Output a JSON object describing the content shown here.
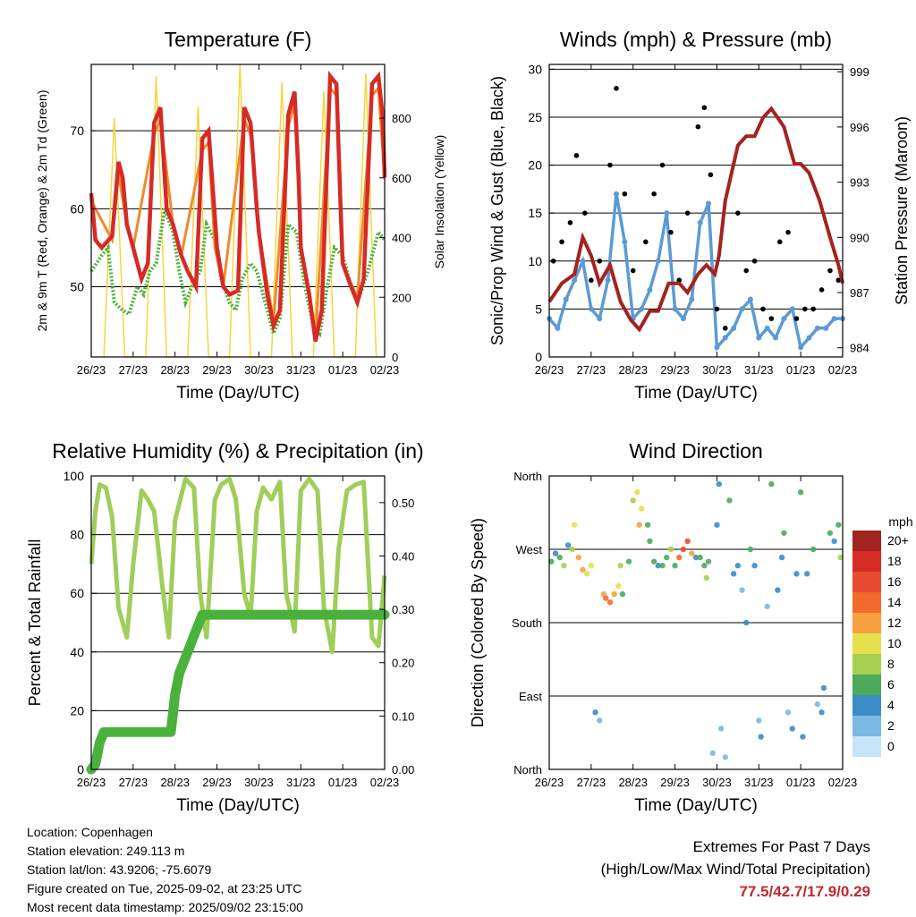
{
  "chart_data": [
    {
      "type": "line",
      "title": "Temperature (F)",
      "xlabel": "Time (Day/UTC)",
      "ylabel": "2m & 9m T (Red, Orange) & 2m Td (Green)",
      "y2label": "Solar Insolation (Yellow)",
      "x_ticks": [
        "26/23",
        "27/23",
        "28/23",
        "29/23",
        "30/23",
        "31/23",
        "01/23",
        "02/23"
      ],
      "ylim": [
        41,
        78.5
      ],
      "y_ticks": [
        50,
        60,
        70
      ],
      "y2lim": [
        0,
        980
      ],
      "y2_ticks": [
        0,
        200,
        400,
        600,
        800
      ],
      "grid": true,
      "series": [
        {
          "name": "2m T",
          "color": "#d62b25",
          "x": [
            0,
            0.1,
            0.25,
            0.5,
            0.65,
            0.75,
            0.85,
            1.0,
            1.2,
            1.35,
            1.5,
            1.65,
            1.8,
            1.95,
            2.0,
            2.15,
            2.3,
            2.5,
            2.65,
            2.8,
            2.95,
            3.0,
            3.15,
            3.3,
            3.5,
            3.65,
            3.8,
            3.95,
            4.0,
            4.2,
            4.35,
            4.5,
            4.7,
            4.85,
            4.95,
            5.0,
            5.2,
            5.35,
            5.5,
            5.7,
            5.85,
            5.95,
            6.0,
            6.2,
            6.35,
            6.5,
            6.7,
            6.85,
            6.95,
            7.0
          ],
          "y": [
            62,
            56,
            55,
            56.5,
            66,
            64,
            58,
            55,
            51,
            53,
            71,
            73,
            60,
            58,
            57,
            54,
            52,
            50,
            69,
            70,
            59,
            55,
            50,
            49,
            49.5,
            73,
            71,
            60,
            57,
            49,
            45,
            47,
            72,
            75,
            64,
            55,
            49,
            43,
            47,
            77,
            76,
            60,
            53,
            50,
            48,
            51,
            76,
            77,
            72,
            64
          ]
        },
        {
          "name": "9m T",
          "color": "#f08a2b",
          "x": [
            0,
            0.5,
            0.65,
            0.85,
            1.0,
            1.5,
            1.65,
            1.95,
            2.15,
            2.65,
            2.8,
            2.95,
            3.15,
            3.65,
            3.8,
            4.0,
            4.35,
            4.7,
            4.85,
            5.0,
            5.35,
            5.7,
            5.85,
            6.0,
            6.35,
            6.7,
            6.85,
            7.0
          ],
          "y": [
            61,
            56,
            64.5,
            58,
            55,
            69.5,
            71.5,
            58,
            54,
            67.5,
            68.5,
            55,
            50,
            71.5,
            69.5,
            57,
            45.5,
            70.5,
            73.5,
            55,
            43.5,
            75.5,
            74.5,
            53,
            48.5,
            74.5,
            75.5,
            64
          ]
        },
        {
          "name": "2m Td",
          "color": "#4ab23c",
          "x": [
            0,
            0.25,
            0.4,
            0.55,
            0.75,
            0.9,
            1.1,
            1.25,
            1.4,
            1.55,
            1.75,
            1.95,
            2.1,
            2.25,
            2.4,
            2.6,
            2.75,
            2.95,
            3.1,
            3.3,
            3.45,
            3.6,
            3.8,
            3.95,
            4.15,
            4.35,
            4.5,
            4.7,
            4.9,
            5.1,
            5.3,
            5.45,
            5.6,
            5.8,
            6.0,
            6.2,
            6.35,
            6.6,
            6.85,
            7.0
          ],
          "y": [
            52,
            54,
            55,
            48,
            47,
            46.5,
            50,
            49,
            52,
            53,
            60,
            57,
            52,
            48,
            50,
            52,
            58,
            56,
            51,
            48,
            47,
            51,
            53,
            52,
            48,
            44,
            46,
            58,
            57,
            50,
            45,
            44,
            49,
            55,
            54,
            50,
            48,
            52,
            57,
            56
          ]
        },
        {
          "name": "Solar Insolation",
          "color": "#f5d63d",
          "axis": "y2",
          "x": [
            0.3,
            0.55,
            0.8,
            1.3,
            1.55,
            1.8,
            2.3,
            2.55,
            2.8,
            3.3,
            3.55,
            3.8,
            4.3,
            4.55,
            4.8,
            5.3,
            5.55,
            5.8,
            6.3,
            6.55,
            6.8
          ],
          "y": [
            0,
            800,
            0,
            0,
            940,
            0,
            0,
            840,
            0,
            0,
            980,
            0,
            0,
            920,
            0,
            0,
            890,
            0,
            0,
            950,
            0
          ]
        }
      ]
    },
    {
      "type": "scatter",
      "title": "Winds (mph) & Pressure (mb)",
      "xlabel": "Time (Day/UTC)",
      "ylabel": "Sonic/Prop Wind & Gust (Blue, Black)",
      "y2label": "Station Pressure (Maroon)",
      "x_ticks": [
        "26/23",
        "27/23",
        "28/23",
        "29/23",
        "30/23",
        "31/23",
        "01/23",
        "02/23"
      ],
      "ylim": [
        0,
        30.5
      ],
      "y_ticks": [
        0,
        5,
        10,
        15,
        20,
        25,
        30
      ],
      "y2lim": [
        983.5,
        999.4
      ],
      "y2_ticks": [
        984,
        987,
        990,
        993,
        996,
        999
      ],
      "grid": true,
      "series": [
        {
          "name": "Gust",
          "color": "#000000",
          "x": [
            0.1,
            0.3,
            0.5,
            0.65,
            0.85,
            1.0,
            1.2,
            1.45,
            1.6,
            1.8,
            2.0,
            2.3,
            2.5,
            2.7,
            2.9,
            3.1,
            3.3,
            3.55,
            3.7,
            3.85,
            4.0,
            4.2,
            4.5,
            4.7,
            4.9,
            5.1,
            5.3,
            5.5,
            5.7,
            5.9,
            6.1,
            6.3,
            6.5,
            6.7,
            6.9
          ],
          "y": [
            10,
            12,
            14,
            21,
            15,
            8,
            10,
            20,
            28,
            17,
            9,
            12,
            17,
            20,
            13,
            8,
            15,
            24,
            26,
            19,
            5,
            3,
            15,
            9,
            10,
            5,
            4,
            12,
            13,
            4,
            5,
            5,
            7,
            9,
            8
          ]
        },
        {
          "name": "Wind",
          "color": "#5b9bd5",
          "x": [
            0,
            0.2,
            0.4,
            0.6,
            0.8,
            1.0,
            1.2,
            1.4,
            1.6,
            1.8,
            2.0,
            2.2,
            2.4,
            2.6,
            2.8,
            3.0,
            3.2,
            3.4,
            3.6,
            3.8,
            4.0,
            4.2,
            4.4,
            4.6,
            4.8,
            5.0,
            5.2,
            5.4,
            5.6,
            5.8,
            6.0,
            6.2,
            6.4,
            6.6,
            6.8,
            7.0
          ],
          "y": [
            4,
            3,
            6,
            8,
            10,
            5,
            4,
            8,
            17,
            12,
            4,
            5,
            7,
            10,
            15,
            5,
            4,
            6,
            14,
            16,
            1,
            2,
            3,
            5,
            6,
            2,
            3,
            2,
            4,
            5,
            1,
            2,
            3,
            3,
            4,
            4
          ]
        },
        {
          "name": "Pressure",
          "color": "#a3231f",
          "axis": "y2",
          "mode": "line",
          "x": [
            0,
            0.3,
            0.6,
            0.8,
            1.0,
            1.2,
            1.45,
            1.7,
            1.95,
            2.15,
            2.4,
            2.6,
            2.85,
            3.1,
            3.3,
            3.55,
            3.75,
            3.95,
            4.05,
            4.2,
            4.5,
            4.7,
            4.9,
            5.1,
            5.3,
            5.6,
            5.85,
            6.0,
            6.2,
            6.45,
            6.7,
            6.9,
            7.0
          ],
          "y": [
            986.5,
            987.5,
            988,
            990,
            989,
            987.5,
            988.5,
            986.5,
            985.5,
            985,
            986,
            986,
            987.5,
            987.5,
            987,
            988,
            988.5,
            988,
            989,
            992,
            995,
            995.5,
            995.5,
            996.5,
            997,
            996,
            994,
            994,
            993.5,
            992,
            990,
            988.5,
            987.5
          ]
        }
      ]
    },
    {
      "type": "line",
      "title": "Relative Humidity (%) & Precipitation (in)",
      "xlabel": "Time (Day/UTC)",
      "ylabel": "Percent & Total Rainfall",
      "x_ticks": [
        "26/23",
        "27/23",
        "28/23",
        "29/23",
        "30/23",
        "31/23",
        "01/23",
        "02/23"
      ],
      "ylim": [
        0,
        100
      ],
      "y_ticks": [
        0,
        20,
        40,
        60,
        80,
        100
      ],
      "y2lim": [
        0,
        0.55
      ],
      "y2_ticks": [
        "0.00",
        "0.10",
        "0.20",
        "0.30",
        "0.40",
        "0.50"
      ],
      "grid": true,
      "series": [
        {
          "name": "Relative Humidity",
          "color": "#9fce5a",
          "x": [
            0,
            0.1,
            0.2,
            0.35,
            0.5,
            0.65,
            0.85,
            1.0,
            1.2,
            1.35,
            1.5,
            1.7,
            1.85,
            2.0,
            2.25,
            2.45,
            2.6,
            2.75,
            2.95,
            3.1,
            3.3,
            3.45,
            3.65,
            3.8,
            3.95,
            4.1,
            4.3,
            4.5,
            4.65,
            4.85,
            5.0,
            5.2,
            5.4,
            5.55,
            5.75,
            5.9,
            6.1,
            6.3,
            6.5,
            6.7,
            6.85,
            7.0
          ],
          "y": [
            70,
            88,
            97,
            96,
            86,
            55,
            45,
            70,
            95,
            92,
            88,
            62,
            45,
            85,
            99,
            96,
            60,
            45,
            92,
            97,
            99,
            92,
            60,
            52,
            88,
            96,
            92,
            98,
            60,
            47,
            95,
            99,
            95,
            55,
            40,
            75,
            95,
            97,
            98,
            45,
            42,
            66
          ]
        },
        {
          "name": "Total Precipitation",
          "color": "#4ab23c",
          "axis": "y2",
          "x": [
            0,
            0.1,
            0.15,
            0.2,
            0.3,
            1.0,
            1.9,
            2.0,
            2.1,
            2.2,
            2.3,
            2.5,
            2.65,
            3.0,
            4.0,
            5.0,
            6.0,
            7.0
          ],
          "y": [
            0,
            0.01,
            0.03,
            0.05,
            0.07,
            0.07,
            0.07,
            0.14,
            0.18,
            0.2,
            0.22,
            0.26,
            0.29,
            0.29,
            0.29,
            0.29,
            0.29,
            0.29
          ]
        }
      ]
    },
    {
      "type": "scatter",
      "title": "Wind Direction",
      "xlabel": "Time (Day/UTC)",
      "ylabel": "Direction (Colored By Speed)",
      "x_ticks": [
        "26/23",
        "27/23",
        "28/23",
        "29/23",
        "30/23",
        "31/23",
        "01/23",
        "02/23"
      ],
      "y_categories": [
        "North",
        "East",
        "South",
        "West",
        "North"
      ],
      "ylim": [
        0,
        360
      ],
      "grid": true,
      "colorbar": {
        "title": "mph",
        "labels": [
          "20+",
          "18",
          "16",
          "14",
          "12",
          "10",
          "8",
          "6",
          "4",
          "2",
          "0"
        ],
        "colors": [
          "#a3231f",
          "#d62b25",
          "#e84b2f",
          "#f26a2c",
          "#f9a03f",
          "#e6e04d",
          "#a6d150",
          "#4caa5a",
          "#3b8cc6",
          "#7bb8e4",
          "#c5e4f8"
        ]
      },
      "series": [
        {
          "name": "direction",
          "x": [
            0.05,
            0.15,
            0.25,
            0.35,
            0.45,
            0.55,
            0.6,
            0.7,
            0.8,
            0.9,
            1.0,
            1.1,
            1.2,
            1.3,
            1.35,
            1.45,
            1.55,
            1.65,
            1.7,
            1.75,
            1.9,
            2.0,
            2.1,
            2.15,
            2.2,
            2.35,
            2.4,
            2.5,
            2.6,
            2.7,
            2.8,
            2.9,
            3.0,
            3.1,
            3.2,
            3.3,
            3.4,
            3.5,
            3.6,
            3.7,
            3.75,
            3.8,
            3.9,
            4.0,
            4.05,
            4.1,
            4.2,
            4.3,
            4.4,
            4.5,
            4.6,
            4.7,
            4.8,
            4.9,
            5.0,
            5.05,
            5.2,
            5.3,
            5.45,
            5.55,
            5.6,
            5.7,
            5.8,
            5.9,
            6.0,
            6.05,
            6.15,
            6.3,
            6.4,
            6.5,
            6.55,
            6.7,
            6.8,
            6.9,
            6.95
          ],
          "y": [
            255,
            265,
            260,
            250,
            275,
            270,
            300,
            260,
            245,
            240,
            250,
            70,
            60,
            215,
            210,
            205,
            215,
            225,
            250,
            215,
            255,
            330,
            340,
            300,
            320,
            300,
            280,
            255,
            250,
            250,
            260,
            270,
            250,
            260,
            270,
            280,
            265,
            260,
            260,
            250,
            235,
            255,
            20,
            300,
            350,
            50,
            15,
            330,
            240,
            250,
            220,
            180,
            270,
            250,
            60,
            40,
            200,
            350,
            220,
            260,
            290,
            70,
            50,
            240,
            340,
            40,
            240,
            270,
            80,
            70,
            100,
            290,
            280,
            300,
            260
          ],
          "speed": [
            6,
            4,
            5,
            7,
            4,
            8,
            10,
            12,
            11,
            10,
            9,
            3,
            2,
            12,
            13,
            14,
            12,
            10,
            8,
            6,
            5,
            8,
            10,
            12,
            9,
            6,
            5,
            6,
            4,
            5,
            6,
            8,
            5,
            14,
            16,
            15,
            12,
            4,
            5,
            6,
            8,
            6,
            2,
            3,
            4,
            2,
            1,
            6,
            3,
            4,
            2,
            3,
            5,
            4,
            2,
            3,
            2,
            6,
            3,
            4,
            5,
            2,
            3,
            4,
            5,
            3,
            4,
            6,
            2,
            3,
            4,
            5,
            4,
            6,
            8
          ]
        }
      ]
    }
  ],
  "footer": {
    "lines": [
      "Location: Copenhagen",
      "Station elevation: 249.113 m",
      "Station lat/lon: 43.9206; -75.6079",
      "Figure created on Tue, 2025-09-02, at 23:25 UTC",
      "Most recent data timestamp: 2025/09/02 23:15:00"
    ],
    "extremes_line1": "Extremes For Past 7 Days",
    "extremes_line2": "(High/Low/Max Wind/Total Precipitation)",
    "extremes_values": "77.5/42.7/17.9/0.29",
    "extremes_color": "#c0282d"
  }
}
